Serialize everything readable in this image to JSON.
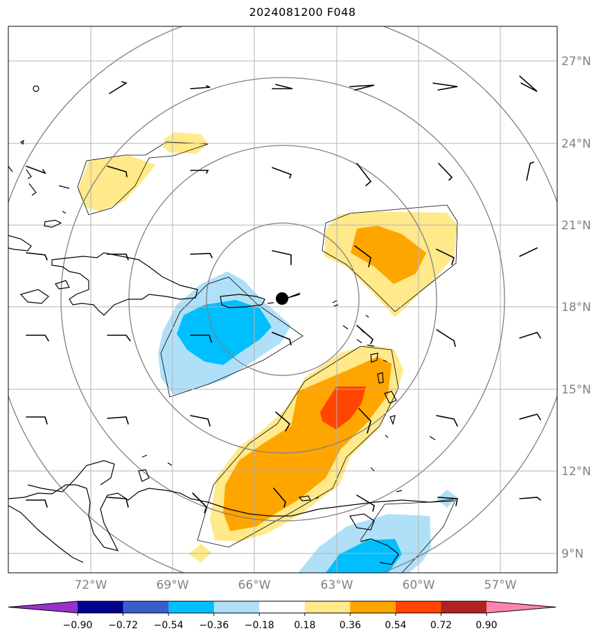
{
  "title": "2024081200 F048",
  "lat_labels": [
    "27°N",
    "24°N",
    "21°N",
    "18°N",
    "15°N",
    "12°N",
    "9°N"
  ],
  "lon_labels": [
    "72°W",
    "69°W",
    "66°W",
    "63°W",
    "60°W",
    "57°W"
  ],
  "colorbar": {
    "ticks": [
      "−0.90",
      "−0.72",
      "−0.54",
      "−0.36",
      "−0.18",
      "0.18",
      "0.36",
      "0.54",
      "0.72",
      "0.90"
    ],
    "colors": [
      "#9932cc",
      "#00008b",
      "#3a5fcd",
      "#00bfff",
      "#b0e0f8",
      "#ffffff",
      "#ffe98a",
      "#ffa500",
      "#ff4500",
      "#b22222",
      "#ff85b0"
    ]
  },
  "colors": {
    "coast": "#000000",
    "grid": "#b3b3b3",
    "range_ring": "#808080",
    "neg_light": "#b0e0f8",
    "neg_mid": "#00bfff",
    "pos_light": "#ffe98a",
    "pos_mid": "#ffa500",
    "pos_high": "#ff4500"
  }
}
